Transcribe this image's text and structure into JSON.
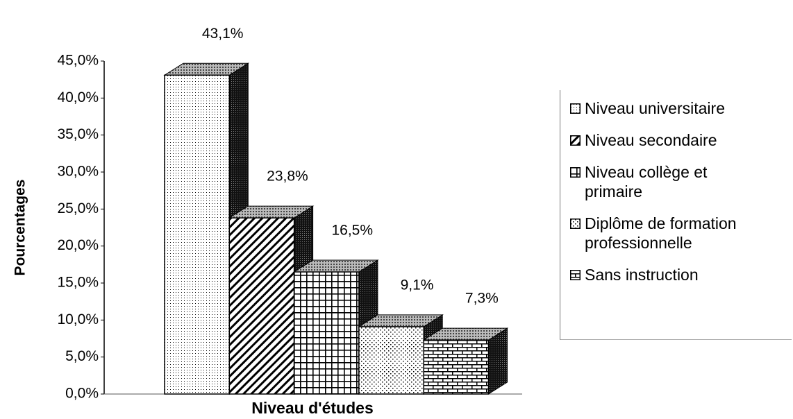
{
  "chart_data": {
    "type": "bar3d",
    "x_label": "Niveau d'études",
    "y_label": "Pourcentages",
    "ylim": [
      0,
      45
    ],
    "yticks": [
      {
        "value": 0,
        "label": "0,0%"
      },
      {
        "value": 5,
        "label": "5,0%"
      },
      {
        "value": 10,
        "label": "10,0%"
      },
      {
        "value": 15,
        "label": "15,0%"
      },
      {
        "value": 20,
        "label": "20,0%"
      },
      {
        "value": 25,
        "label": "25,0%"
      },
      {
        "value": 30,
        "label": "30,0%"
      },
      {
        "value": 35,
        "label": "35,0%"
      },
      {
        "value": 40,
        "label": "40,0%"
      },
      {
        "value": 45,
        "label": "45,0%"
      }
    ],
    "series": [
      {
        "name": "Niveau universitaire",
        "color": "#000000",
        "values": [
          43.1
        ],
        "value_labels": [
          "43,1%"
        ]
      },
      {
        "name": "Niveau secondaire",
        "color": "#000000",
        "values": [
          23.8
        ],
        "value_labels": [
          "23,8%"
        ]
      },
      {
        "name": "Niveau collège et primaire",
        "color": "#000000",
        "values": [
          16.5
        ],
        "value_labels": [
          "16,5%"
        ]
      },
      {
        "name": "Diplôme de formation professionnelle",
        "color": "#000000",
        "values": [
          9.1
        ],
        "value_labels": [
          "9,1%"
        ]
      },
      {
        "name": "Sans instruction",
        "color": "#000000",
        "values": [
          7.3
        ],
        "value_labels": [
          "7,3%"
        ]
      }
    ],
    "legend": "right"
  }
}
